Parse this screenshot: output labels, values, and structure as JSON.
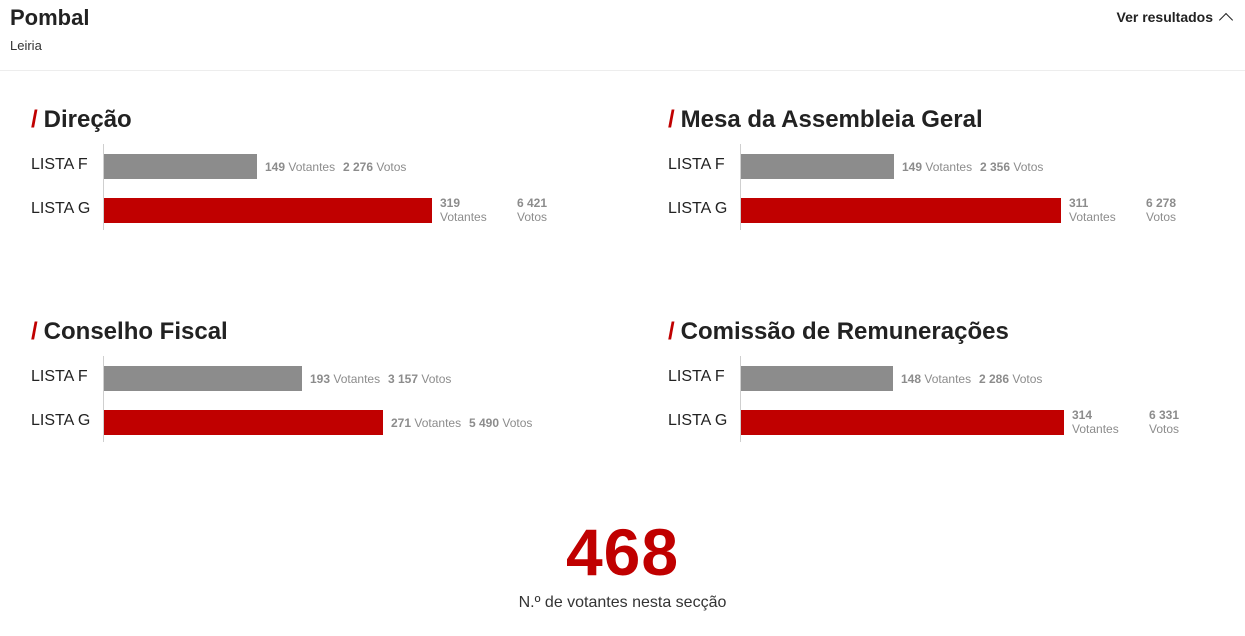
{
  "header": {
    "title": "Pombal",
    "subtitle": "Leiria",
    "toggle_label": "Ver resultados",
    "toggle_icon": "chevron-up-icon"
  },
  "colors": {
    "accent": "#c00000",
    "lista_f": "#8c8c8c",
    "lista_g": "#c00000"
  },
  "chart_data": [
    {
      "type": "bar",
      "title": "Direção",
      "categories": [
        "LISTA F",
        "LISTA G"
      ],
      "votantes": [
        149,
        319
      ],
      "votos": [
        "2 276",
        "6 421"
      ],
      "votantes_label": "Votantes",
      "votos_label": "Votos"
    },
    {
      "type": "bar",
      "title": "Mesa da Assembleia Geral",
      "categories": [
        "LISTA F",
        "LISTA G"
      ],
      "votantes": [
        149,
        311
      ],
      "votos": [
        "2 356",
        "6 278"
      ],
      "votantes_label": "Votantes",
      "votos_label": "Votos"
    },
    {
      "type": "bar",
      "title": "Conselho Fiscal",
      "categories": [
        "LISTA F",
        "LISTA G"
      ],
      "votantes": [
        193,
        271
      ],
      "votos": [
        "3 157",
        "5 490"
      ],
      "votantes_label": "Votantes",
      "votos_label": "Votos"
    },
    {
      "type": "bar",
      "title": "Comissão de Remunerações",
      "categories": [
        "LISTA F",
        "LISTA G"
      ],
      "votantes": [
        148,
        314
      ],
      "votos": [
        "2 286",
        "6 331"
      ],
      "votantes_label": "Votantes",
      "votos_label": "Votos"
    }
  ],
  "summary": {
    "total_voters": "468",
    "caption": "N.º de votantes nesta secção"
  }
}
